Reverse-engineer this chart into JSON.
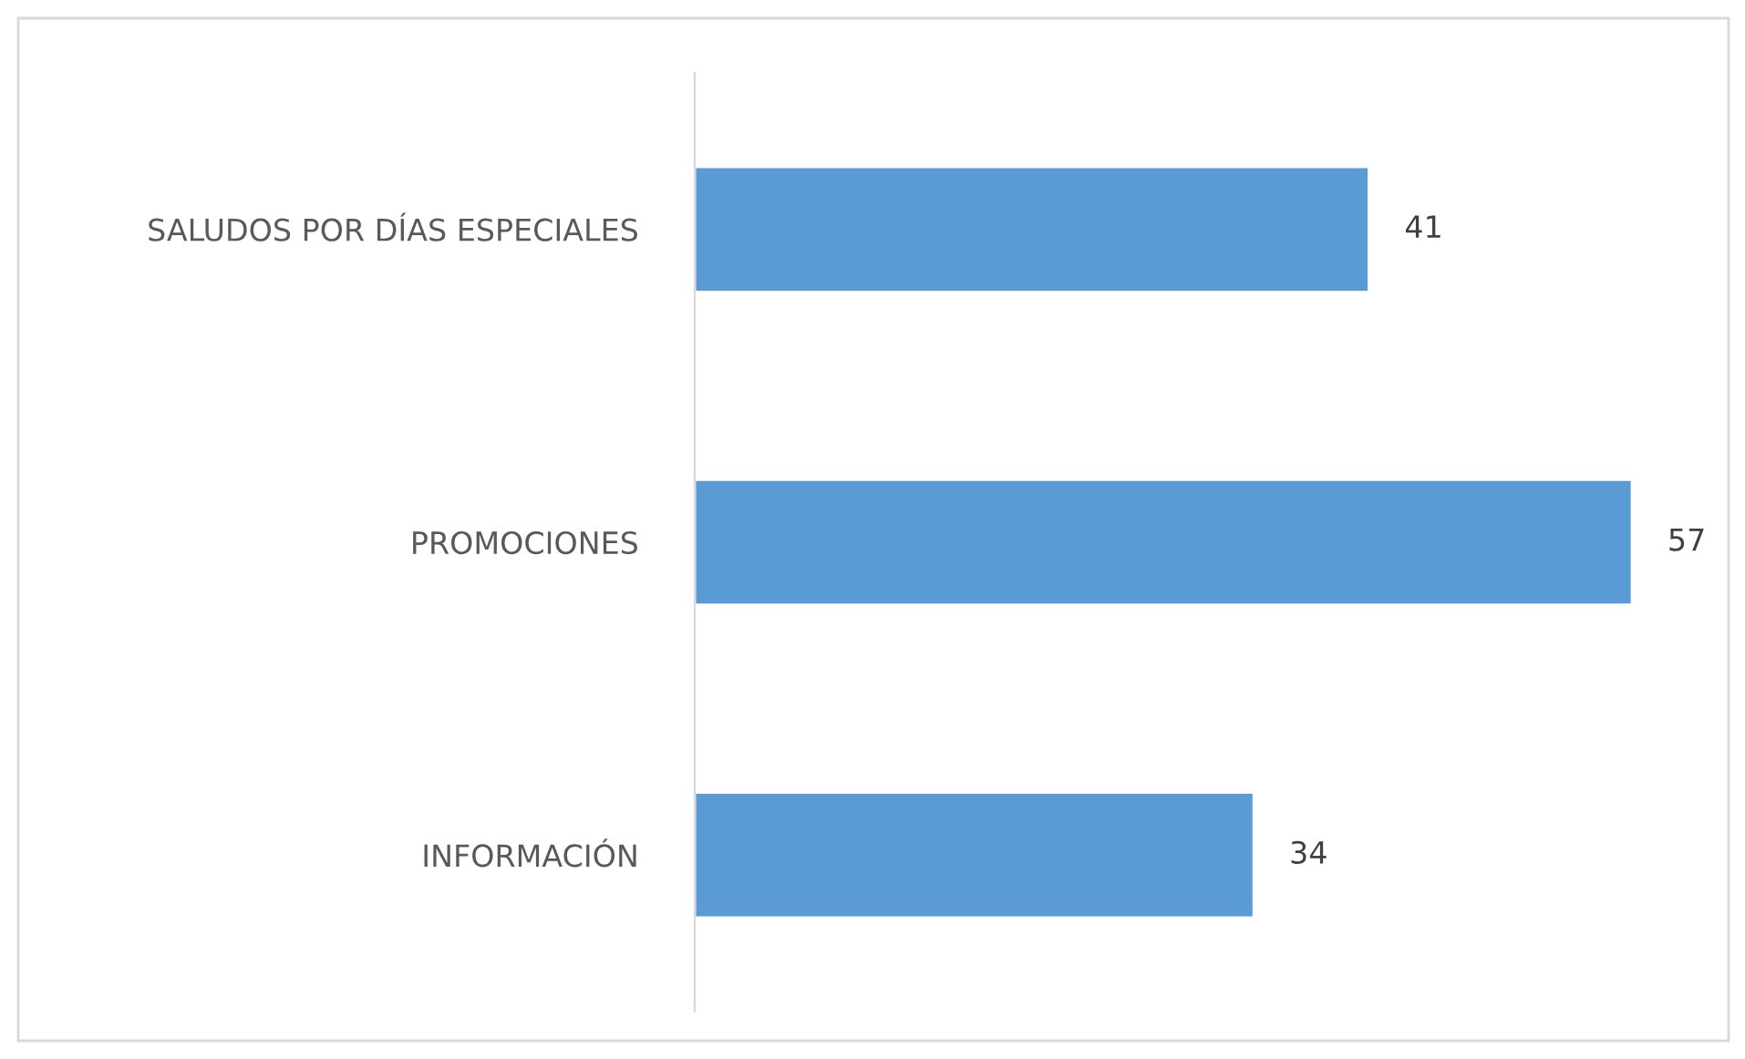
{
  "chart_data": {
    "type": "bar",
    "orientation": "horizontal",
    "categories": [
      "SALUDOS POR DÍAS ESPECIALES",
      "PROMOCIONES",
      "INFORMACIÓN"
    ],
    "values": [
      41,
      57,
      34
    ],
    "color": "#5b9bd5",
    "data_labels": true,
    "grid": false,
    "legend": false,
    "tick_labels": "y"
  }
}
